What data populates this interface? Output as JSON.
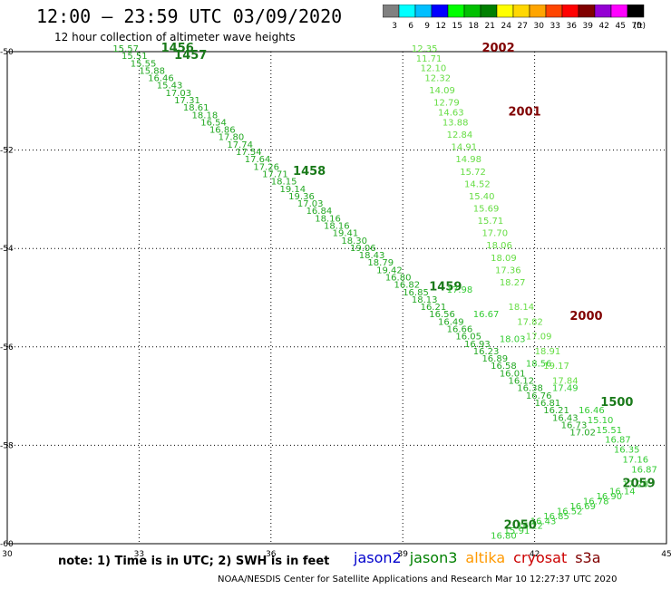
{
  "title": "12:00 — 23:59 UTC 03/09/2020",
  "subtitle": "12 hour collection of altimeter wave heights",
  "legend": {
    "swatches": [
      {
        "label": "3",
        "color": "#808080"
      },
      {
        "label": "6",
        "color": "#00ffff"
      },
      {
        "label": "9",
        "color": "#00bfff"
      },
      {
        "label": "12",
        "color": "#0000ff"
      },
      {
        "label": "15",
        "color": "#00ff00"
      },
      {
        "label": "18",
        "color": "#00c000"
      },
      {
        "label": "21",
        "color": "#008000"
      },
      {
        "label": "24",
        "color": "#ffff00"
      },
      {
        "label": "27",
        "color": "#ffd700"
      },
      {
        "label": "30",
        "color": "#ffa500"
      },
      {
        "label": "33",
        "color": "#ff4500"
      },
      {
        "label": "36",
        "color": "#ff0000"
      },
      {
        "label": "39",
        "color": "#800000"
      },
      {
        "label": "42",
        "color": "#9400d3"
      },
      {
        "label": "45",
        "color": "#ff00ff"
      },
      {
        "label": "70",
        "color": "#000000"
      }
    ],
    "units": "(ft)"
  },
  "note": "note: 1) Time is in UTC; 2) SWH is in feet",
  "satellites": [
    {
      "name": "jason2",
      "color": "#0000cc"
    },
    {
      "name": "jason3",
      "color": "#008000"
    },
    {
      "name": "altika",
      "color": "#ff9900"
    },
    {
      "name": "cryosat",
      "color": "#cc0000"
    },
    {
      "name": "s3a",
      "color": "#800000"
    }
  ],
  "footer": "NOAA/NESDIS Center for Satellite Applications and Research    Mar 10 12:27:37 UTC 2020",
  "chart_data": {
    "type": "scatter",
    "xlim": [
      30,
      45
    ],
    "ylim": [
      -60,
      -50
    ],
    "x_ticks": [
      30,
      33,
      36,
      39,
      42,
      45
    ],
    "y_ticks": [
      -50,
      -52,
      -54,
      -56,
      -58,
      -60
    ],
    "grid": true,
    "tracks": [
      {
        "name": "jason3-track-a",
        "color": "#22a822",
        "time_labels": [
          {
            "text": "1456",
            "x": 33.5,
            "y": -50.0
          },
          {
            "text": "1457",
            "x": 33.8,
            "y": -50.15
          },
          {
            "text": "1458",
            "x": 36.5,
            "y": -52.5
          },
          {
            "text": "1459",
            "x": 39.6,
            "y": -54.85
          }
        ],
        "points": [
          {
            "x": 32.4,
            "y": -50.0,
            "v": 15.57
          },
          {
            "x": 32.6,
            "y": -50.15,
            "v": 15.51
          },
          {
            "x": 32.8,
            "y": -50.3,
            "v": 15.55
          },
          {
            "x": 33.0,
            "y": -50.45,
            "v": 15.88
          },
          {
            "x": 33.2,
            "y": -50.6,
            "v": 16.46
          },
          {
            "x": 33.4,
            "y": -50.75,
            "v": 15.43
          },
          {
            "x": 33.6,
            "y": -50.9,
            "v": 17.03
          },
          {
            "x": 33.8,
            "y": -51.05,
            "v": 17.31
          },
          {
            "x": 34.0,
            "y": -51.2,
            "v": 18.61
          },
          {
            "x": 34.2,
            "y": -51.35,
            "v": 18.18
          },
          {
            "x": 34.4,
            "y": -51.5,
            "v": 16.54
          },
          {
            "x": 34.6,
            "y": -51.65,
            "v": 16.86
          },
          {
            "x": 34.8,
            "y": -51.8,
            "v": 17.8
          },
          {
            "x": 35.0,
            "y": -51.95,
            "v": 17.74
          },
          {
            "x": 35.2,
            "y": -52.1,
            "v": 17.54
          },
          {
            "x": 35.4,
            "y": -52.25,
            "v": 17.64
          },
          {
            "x": 35.6,
            "y": -52.4,
            "v": 17.26
          },
          {
            "x": 35.8,
            "y": -52.55,
            "v": 17.71
          },
          {
            "x": 36.0,
            "y": -52.7,
            "v": 18.15
          },
          {
            "x": 36.2,
            "y": -52.85,
            "v": 19.14
          },
          {
            "x": 36.4,
            "y": -53.0,
            "v": 19.36
          },
          {
            "x": 36.6,
            "y": -53.15,
            "v": 17.03
          },
          {
            "x": 36.8,
            "y": -53.3,
            "v": 16.84
          },
          {
            "x": 37.0,
            "y": -53.45,
            "v": 18.16
          },
          {
            "x": 37.2,
            "y": -53.6,
            "v": 18.16
          },
          {
            "x": 37.4,
            "y": -53.75,
            "v": 19.41
          },
          {
            "x": 37.6,
            "y": -53.9,
            "v": 18.3
          },
          {
            "x": 37.8,
            "y": -54.05,
            "v": 19.06
          },
          {
            "x": 38.0,
            "y": -54.2,
            "v": 18.43
          },
          {
            "x": 38.2,
            "y": -54.35,
            "v": 18.79
          },
          {
            "x": 38.4,
            "y": -54.5,
            "v": 19.42
          },
          {
            "x": 38.6,
            "y": -54.65,
            "v": 16.8
          },
          {
            "x": 38.8,
            "y": -54.8,
            "v": 16.82
          },
          {
            "x": 39.0,
            "y": -54.95,
            "v": 16.85
          },
          {
            "x": 39.2,
            "y": -55.1,
            "v": 18.13
          },
          {
            "x": 39.4,
            "y": -55.25,
            "v": 16.21
          },
          {
            "x": 39.6,
            "y": -55.4,
            "v": 16.56
          },
          {
            "x": 39.8,
            "y": -55.55,
            "v": 16.49
          },
          {
            "x": 40.0,
            "y": -55.7,
            "v": 16.66
          },
          {
            "x": 40.2,
            "y": -55.85,
            "v": 16.05
          },
          {
            "x": 40.4,
            "y": -56.0,
            "v": 16.93
          },
          {
            "x": 40.6,
            "y": -56.15,
            "v": 16.23
          },
          {
            "x": 40.8,
            "y": -56.3,
            "v": 16.89
          },
          {
            "x": 41.0,
            "y": -56.45,
            "v": 16.58
          },
          {
            "x": 41.2,
            "y": -56.6,
            "v": 16.01
          },
          {
            "x": 41.4,
            "y": -56.75,
            "v": 16.12
          },
          {
            "x": 41.6,
            "y": -56.9,
            "v": 16.38
          },
          {
            "x": 41.8,
            "y": -57.05,
            "v": 16.76
          },
          {
            "x": 42.0,
            "y": -57.2,
            "v": 16.81
          },
          {
            "x": 42.2,
            "y": -57.35,
            "v": 16.21
          },
          {
            "x": 42.4,
            "y": -57.5,
            "v": 16.43
          },
          {
            "x": 42.6,
            "y": -57.65,
            "v": 16.73
          },
          {
            "x": 42.8,
            "y": -57.8,
            "v": 17.02
          }
        ]
      },
      {
        "name": "jason3-track-b",
        "color": "#33cc33",
        "time_labels": [
          {
            "text": "1500",
            "x": 43.5,
            "y": -57.2
          }
        ],
        "points": [
          {
            "x": 40.0,
            "y": -54.9,
            "v": 17.98
          },
          {
            "x": 40.6,
            "y": -55.4,
            "v": 16.67
          },
          {
            "x": 41.2,
            "y": -55.9,
            "v": 18.03
          },
          {
            "x": 41.8,
            "y": -56.4,
            "v": 18.56
          },
          {
            "x": 42.4,
            "y": -56.9,
            "v": 17.49
          },
          {
            "x": 43.0,
            "y": -57.35,
            "v": 16.46
          },
          {
            "x": 43.2,
            "y": -57.55,
            "v": 15.1
          },
          {
            "x": 43.4,
            "y": -57.75,
            "v": 15.51
          },
          {
            "x": 43.6,
            "y": -57.95,
            "v": 16.87
          },
          {
            "x": 43.8,
            "y": -58.15,
            "v": 16.35
          },
          {
            "x": 44.0,
            "y": -58.35,
            "v": 17.16
          },
          {
            "x": 44.2,
            "y": -58.55,
            "v": 16.87
          }
        ]
      },
      {
        "name": "cryosat-track",
        "color": "#66dd44",
        "time_labels": [
          {
            "text": "2002",
            "x": 40.8,
            "y": -50.0
          },
          {
            "text": "2001",
            "x": 41.4,
            "y": -51.3
          },
          {
            "text": "2000",
            "x": 42.8,
            "y": -55.45
          }
        ],
        "points": [
          {
            "x": 39.2,
            "y": -50.0,
            "v": 12.35
          },
          {
            "x": 39.3,
            "y": -50.2,
            "v": 11.71
          },
          {
            "x": 39.4,
            "y": -50.4,
            "v": 12.1
          },
          {
            "x": 39.5,
            "y": -50.6,
            "v": 12.32
          },
          {
            "x": 39.6,
            "y": -50.85,
            "v": 14.09
          },
          {
            "x": 39.7,
            "y": -51.1,
            "v": 12.79
          },
          {
            "x": 39.8,
            "y": -51.3,
            "v": 14.63
          },
          {
            "x": 39.9,
            "y": -51.5,
            "v": 13.88
          },
          {
            "x": 40.0,
            "y": -51.75,
            "v": 12.84
          },
          {
            "x": 40.1,
            "y": -52.0,
            "v": 14.91
          },
          {
            "x": 40.2,
            "y": -52.25,
            "v": 14.98
          },
          {
            "x": 40.3,
            "y": -52.5,
            "v": 15.72
          },
          {
            "x": 40.4,
            "y": -52.75,
            "v": 14.52
          },
          {
            "x": 40.5,
            "y": -53.0,
            "v": 15.4
          },
          {
            "x": 40.6,
            "y": -53.25,
            "v": 15.69
          },
          {
            "x": 40.7,
            "y": -53.5,
            "v": 15.71
          },
          {
            "x": 40.8,
            "y": -53.75,
            "v": 17.7
          },
          {
            "x": 40.9,
            "y": -54.0,
            "v": 18.06
          },
          {
            "x": 41.0,
            "y": -54.25,
            "v": 18.09
          },
          {
            "x": 41.1,
            "y": -54.5,
            "v": 17.36
          },
          {
            "x": 41.2,
            "y": -54.75,
            "v": 18.27
          },
          {
            "x": 41.4,
            "y": -55.25,
            "v": 18.14
          },
          {
            "x": 41.6,
            "y": -55.55,
            "v": 17.82
          },
          {
            "x": 41.8,
            "y": -55.85,
            "v": 17.09
          },
          {
            "x": 42.0,
            "y": -56.15,
            "v": 18.91
          },
          {
            "x": 42.2,
            "y": -56.45,
            "v": 19.17
          },
          {
            "x": 42.4,
            "y": -56.75,
            "v": 17.84
          }
        ]
      },
      {
        "name": "s3a-track",
        "color": "#33cc33",
        "time_labels": [
          {
            "text": "2050",
            "x": 41.3,
            "y": -59.7
          },
          {
            "text": "2059",
            "x": 44.0,
            "y": -58.85
          }
        ],
        "points": [
          {
            "x": 41.0,
            "y": -59.9,
            "v": 16.8
          },
          {
            "x": 41.3,
            "y": -59.8,
            "v": 15.91
          },
          {
            "x": 41.6,
            "y": -59.7,
            "v": 16.22
          },
          {
            "x": 41.9,
            "y": -59.6,
            "v": 16.43
          },
          {
            "x": 42.2,
            "y": -59.5,
            "v": 16.85
          },
          {
            "x": 42.5,
            "y": -59.4,
            "v": 16.52
          },
          {
            "x": 42.8,
            "y": -59.3,
            "v": 16.69
          },
          {
            "x": 43.1,
            "y": -59.2,
            "v": 16.78
          },
          {
            "x": 43.4,
            "y": -59.1,
            "v": 16.9
          },
          {
            "x": 43.7,
            "y": -59.0,
            "v": 16.14
          },
          {
            "x": 44.0,
            "y": -58.85,
            "v": 17.2
          }
        ]
      }
    ]
  }
}
